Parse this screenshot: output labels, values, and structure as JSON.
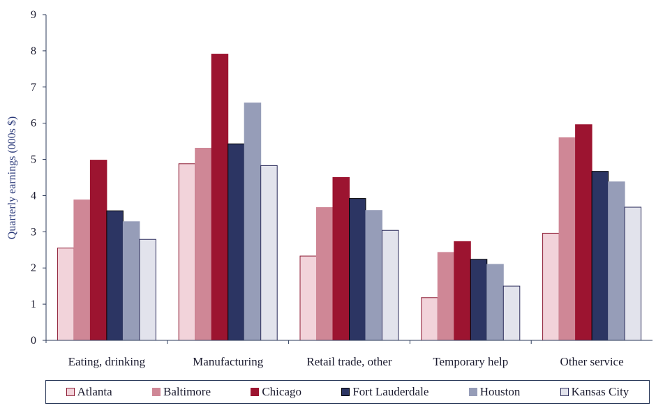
{
  "chart_data": {
    "type": "bar",
    "ylabel": "Quarterly earnings (000s $)",
    "ylim": [
      0,
      9
    ],
    "yticks": [
      0,
      1,
      2,
      3,
      4,
      5,
      6,
      7,
      8,
      9
    ],
    "categories": [
      "Eating, drinking",
      "Manufacturing",
      "Retail trade, other",
      "Temporary help",
      "Other service"
    ],
    "series": [
      {
        "name": "Atlanta",
        "color": "#f2d3da",
        "stroke": "#8c1a33",
        "values": [
          2.55,
          4.88,
          2.33,
          1.18,
          2.96
        ]
      },
      {
        "name": "Baltimore",
        "color": "#cf8796",
        "stroke": "#cf8796",
        "values": [
          3.88,
          5.31,
          3.67,
          2.43,
          5.6
        ]
      },
      {
        "name": "Chicago",
        "color": "#9c1430",
        "stroke": "#9c1430",
        "values": [
          4.98,
          7.91,
          4.5,
          2.73,
          5.96
        ]
      },
      {
        "name": "Fort Lauderdale",
        "color": "#2c3563",
        "stroke": "#000000",
        "values": [
          3.58,
          5.43,
          3.92,
          2.24,
          4.67
        ]
      },
      {
        "name": "Houston",
        "color": "#969db8",
        "stroke": "#969db8",
        "values": [
          3.28,
          6.56,
          3.59,
          2.1,
          4.38
        ]
      },
      {
        "name": "Kansas City",
        "color": "#e2e3ec",
        "stroke": "#2b2b5a",
        "values": [
          2.79,
          4.83,
          3.04,
          1.5,
          3.68
        ]
      }
    ],
    "legend_position": "bottom",
    "grid": false
  }
}
